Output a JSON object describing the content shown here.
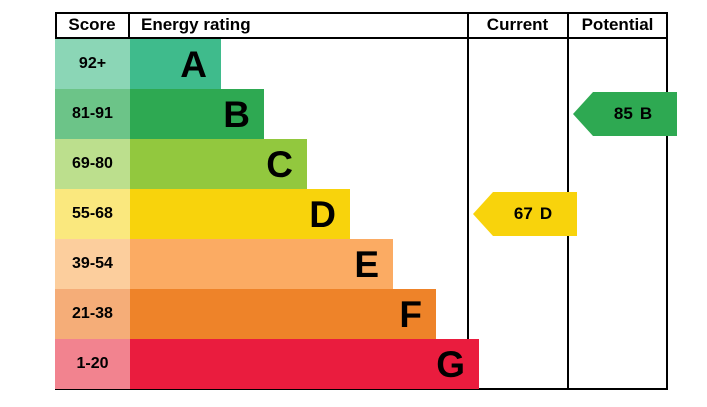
{
  "header": {
    "score": "Score",
    "energy_rating": "Energy rating",
    "current": "Current",
    "potential": "Potential"
  },
  "chart_data": {
    "type": "bar",
    "subtype": "epc-energy-rating",
    "title": "Energy rating",
    "bands": [
      {
        "score_range": "92+",
        "letter": "A",
        "bar_color": "#3fbb8c",
        "tint_color": "#8bd6b6"
      },
      {
        "score_range": "81-91",
        "letter": "B",
        "bar_color": "#2ea952",
        "tint_color": "#6cc488"
      },
      {
        "score_range": "69-80",
        "letter": "C",
        "bar_color": "#92c83e",
        "tint_color": "#bcdf8d"
      },
      {
        "score_range": "55-68",
        "letter": "D",
        "bar_color": "#f8d30c",
        "tint_color": "#fae87e"
      },
      {
        "score_range": "39-54",
        "letter": "E",
        "bar_color": "#fbab63",
        "tint_color": "#fcce9d"
      },
      {
        "score_range": "21-38",
        "letter": "F",
        "bar_color": "#ee8329",
        "tint_color": "#f5ad78"
      },
      {
        "score_range": "1-20",
        "letter": "G",
        "bar_color": "#ea1c3e",
        "tint_color": "#f2838f"
      }
    ],
    "current": {
      "value": "67",
      "letter": "D",
      "arrow_color": "#f8d30c"
    },
    "potential": {
      "value": "85",
      "letter": "B",
      "arrow_color": "#2ea952"
    }
  }
}
